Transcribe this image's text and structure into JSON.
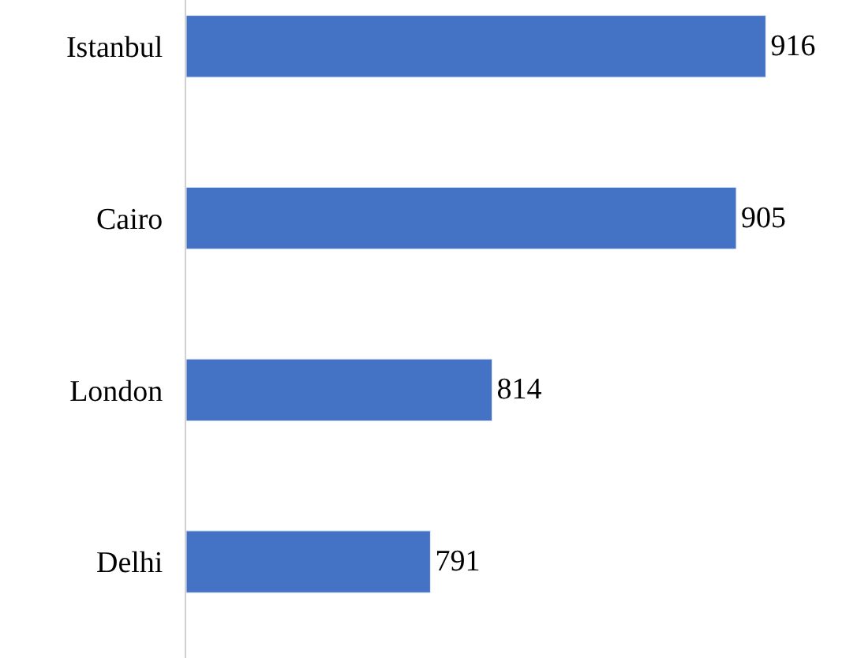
{
  "chart_data": {
    "type": "bar",
    "orientation": "horizontal",
    "categories": [
      "Istanbul",
      "Cairo",
      "London",
      "Delhi"
    ],
    "values": [
      916,
      905,
      814,
      791
    ],
    "color": "#4472c4",
    "xlim": [
      700,
      950
    ],
    "tick_labels": "y",
    "data_labels": true
  }
}
